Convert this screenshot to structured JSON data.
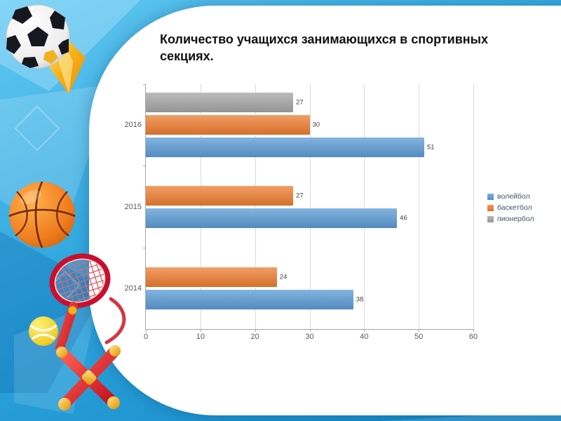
{
  "title": "Количество учащихся занимающихся в спортивных секциях.",
  "chart_data": {
    "type": "bar",
    "orientation": "horizontal",
    "title": "",
    "categories": [
      "2016",
      "2015",
      "2014"
    ],
    "series": [
      {
        "name": "волейбол",
        "color": "#5B9BD5",
        "values": [
          51,
          46,
          38
        ]
      },
      {
        "name": "баскетбол",
        "color": "#ED7D31",
        "values": [
          30,
          27,
          24
        ]
      },
      {
        "name": "пионербол",
        "color": "#A5A5A5",
        "values": [
          27,
          0,
          0
        ]
      }
    ],
    "xlim": [
      0,
      60
    ],
    "xtick_step": 10,
    "xticks": [
      "0",
      "10",
      "20",
      "30",
      "40",
      "50",
      "60"
    ],
    "grid": true,
    "legend_position": "right",
    "value_labels_shown": true,
    "legend_text_color": "#44546A",
    "axis_text_color": "#595959",
    "value_label_color": "#404040"
  },
  "decor_images": [
    "soccer-ball",
    "basketball",
    "tennis-racket",
    "tennis-ball",
    "dumbbells"
  ],
  "colors": {
    "background_top": "#5BC6F0",
    "background_bottom": "#1286C6",
    "card": "#FFFFFF",
    "title_text": "#111111"
  }
}
